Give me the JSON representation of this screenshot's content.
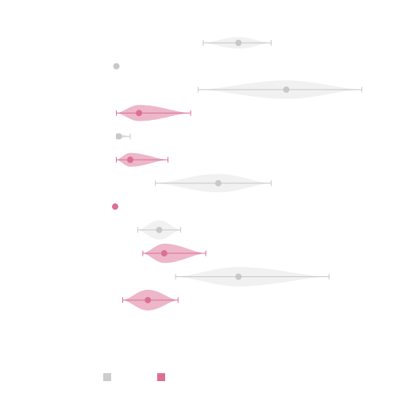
{
  "chart_data": {
    "type": "violin",
    "orientation": "horizontal",
    "grid": false,
    "legend_position": "bottom-left",
    "colors": {
      "gray": "#cccccc",
      "pink": "#db7093"
    },
    "series": [
      {
        "color": "gray"
      },
      {
        "color": "pink"
      }
    ],
    "xlim": [
      0,
      10
    ],
    "violins": [
      {
        "series": 0,
        "min": 3.5,
        "max": 6.2,
        "center": 4.9,
        "width": 0.25
      },
      {
        "series": 0,
        "min": 0.05,
        "max": 0.05,
        "center": 0.05,
        "width": 0.0
      },
      {
        "series": 0,
        "min": 3.3,
        "max": 9.8,
        "center": 6.8,
        "width": 0.4
      },
      {
        "series": 1,
        "min": 0.05,
        "max": 3.0,
        "center": 0.95,
        "width": 0.35
      },
      {
        "series": 0,
        "min": 0.05,
        "max": 0.6,
        "center": 0.15,
        "width": 0.1
      },
      {
        "series": 1,
        "min": 0.05,
        "max": 2.1,
        "center": 0.6,
        "width": 0.3
      },
      {
        "series": 0,
        "min": 1.6,
        "max": 6.2,
        "center": 4.1,
        "width": 0.4
      },
      {
        "series": 1,
        "min": 0.0,
        "max": 0.05,
        "center": 0.0,
        "width": 0.1
      },
      {
        "series": 0,
        "min": 0.9,
        "max": 2.6,
        "center": 1.75,
        "width": 0.42
      },
      {
        "series": 1,
        "min": 1.1,
        "max": 3.6,
        "center": 1.95,
        "width": 0.42
      },
      {
        "series": 0,
        "min": 2.4,
        "max": 8.5,
        "center": 4.9,
        "width": 0.42
      },
      {
        "series": 1,
        "min": 0.3,
        "max": 2.5,
        "center": 1.3,
        "width": 0.45
      }
    ]
  }
}
